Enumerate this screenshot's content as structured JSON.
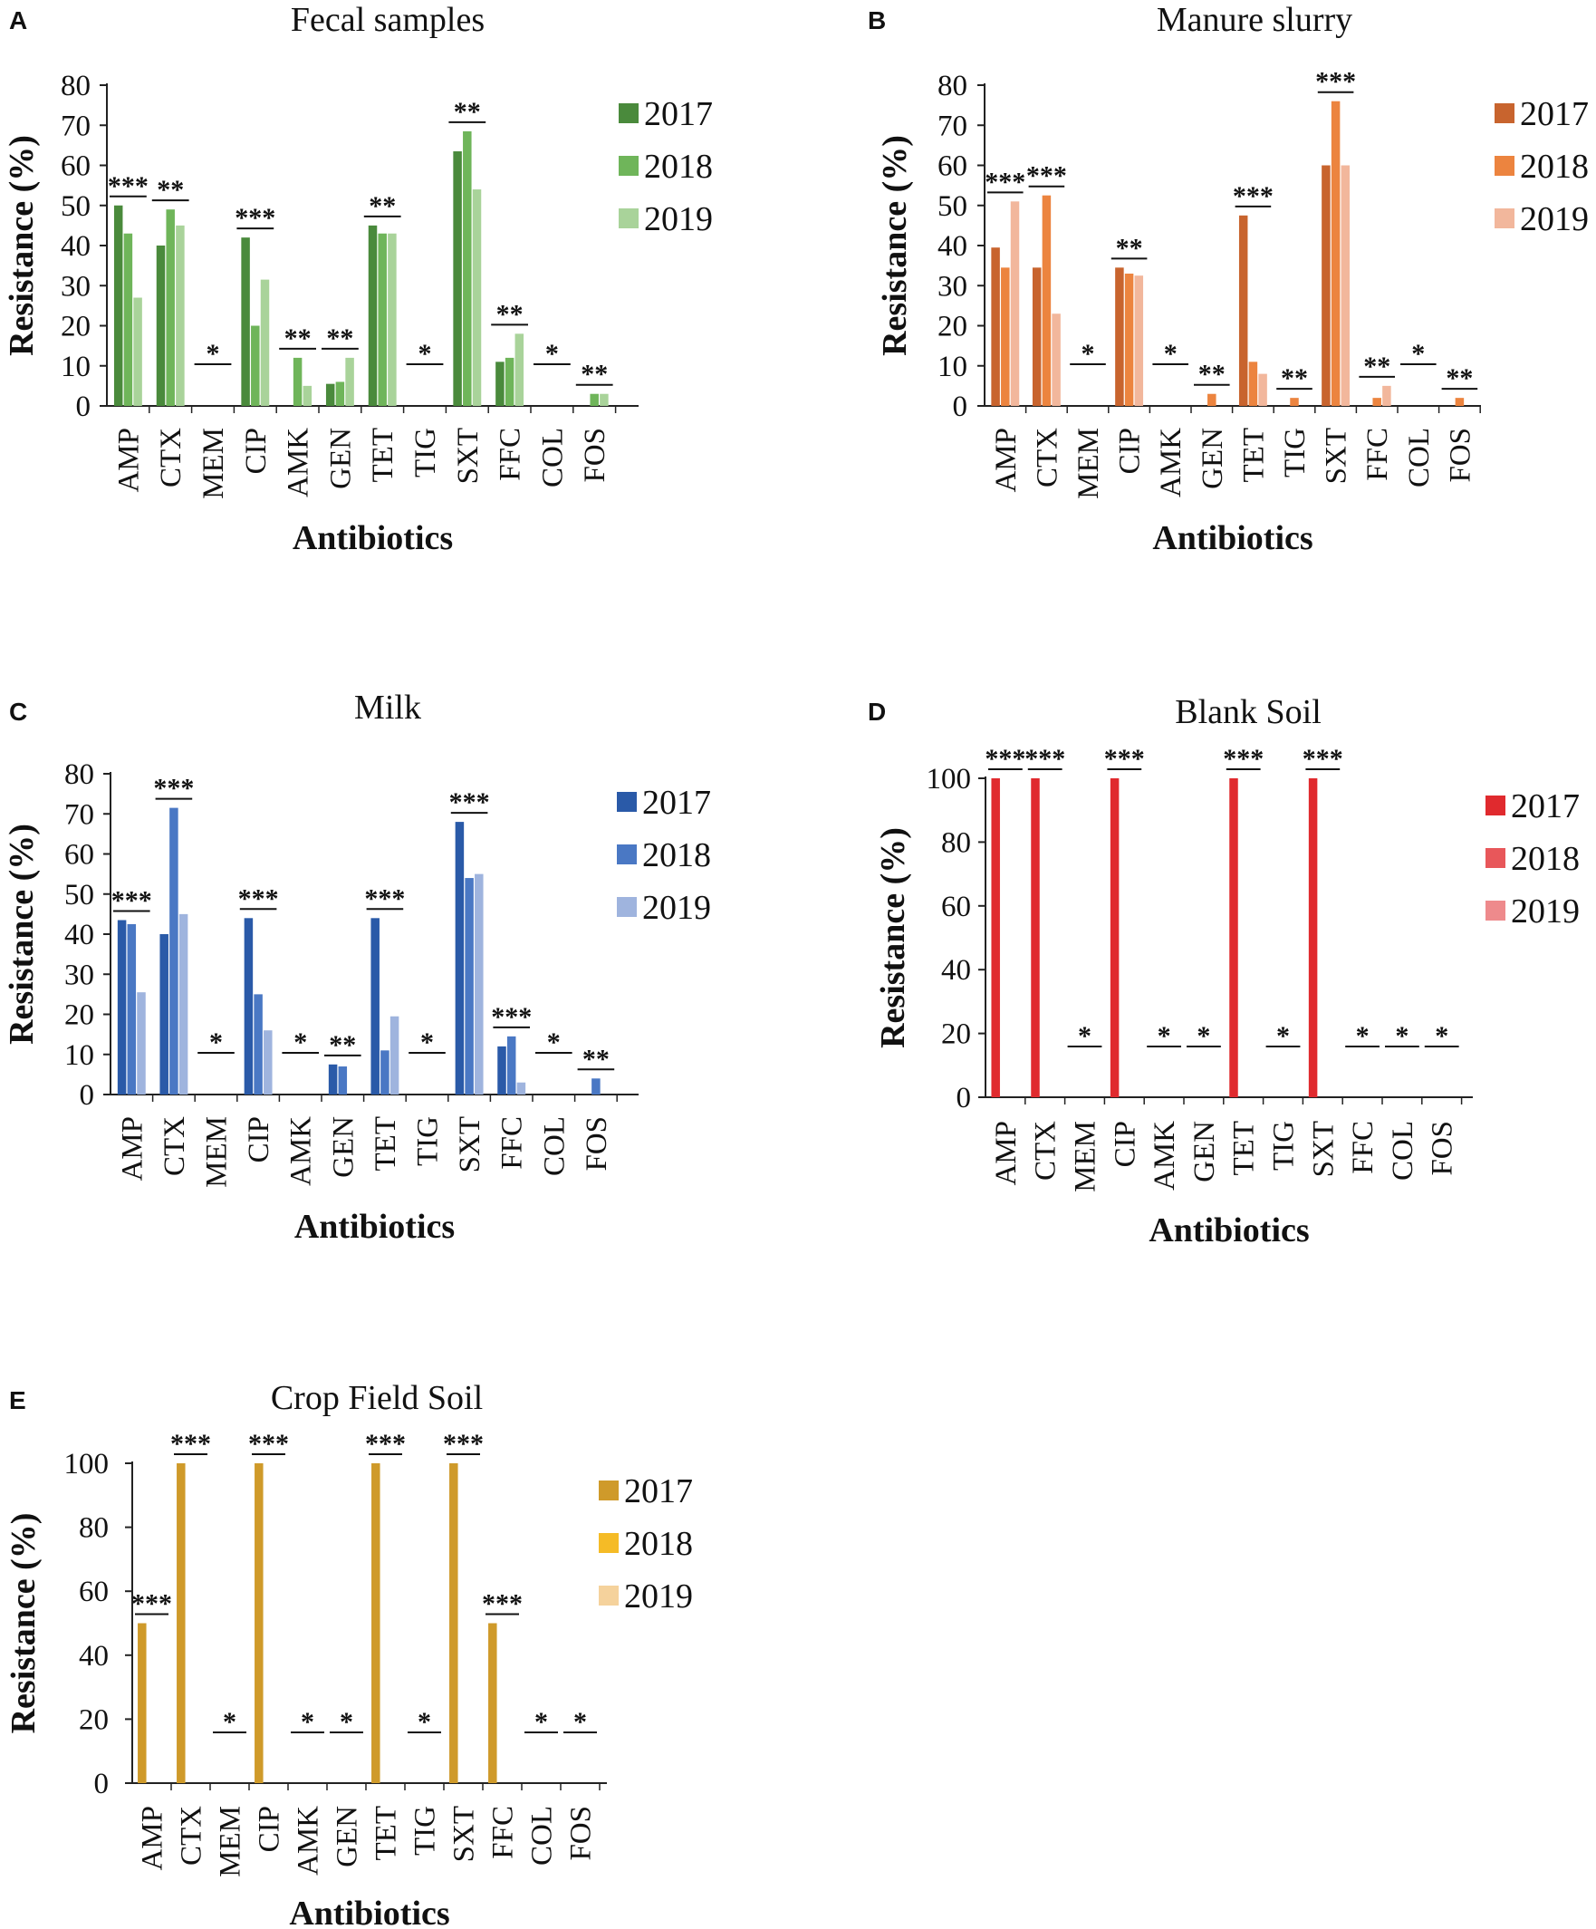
{
  "chart_data": [
    {
      "panel": "A",
      "type": "bar",
      "title": "Fecal samples",
      "xlabel": "Antibiotics",
      "ylabel": "Resistance (%)",
      "ylim": [
        0,
        80
      ],
      "yticks": [
        0,
        10,
        20,
        30,
        40,
        50,
        60,
        70,
        80
      ],
      "categories": [
        "AMP",
        "CTX",
        "MEM",
        "CIP",
        "AMK",
        "GEN",
        "TET",
        "TIG",
        "SXT",
        "FFC",
        "COL",
        "FOS"
      ],
      "series": [
        {
          "name": "2017",
          "color": "#4a8a3c",
          "values": [
            50,
            40,
            0,
            42,
            0,
            5.5,
            45,
            0,
            63.5,
            11,
            0,
            0
          ]
        },
        {
          "name": "2018",
          "color": "#6fb55a",
          "values": [
            43,
            49,
            0,
            20,
            12,
            6,
            43,
            0,
            68.5,
            12,
            0,
            3
          ]
        },
        {
          "name": "2019",
          "color": "#a9d39a",
          "values": [
            27,
            45,
            0,
            31.5,
            5,
            12,
            43,
            0,
            54,
            18,
            0,
            3
          ]
        }
      ],
      "significance": [
        "***",
        "**",
        "*",
        "***",
        "**",
        "**",
        "**",
        "*",
        "**",
        "**",
        "*",
        "**"
      ]
    },
    {
      "panel": "B",
      "type": "bar",
      "title": "Manure slurry",
      "xlabel": "Antibiotics",
      "ylabel": "Resistance (%)",
      "ylim": [
        0,
        80
      ],
      "yticks": [
        0,
        10,
        20,
        30,
        40,
        50,
        60,
        70,
        80
      ],
      "categories": [
        "AMP",
        "CTX",
        "MEM",
        "CIP",
        "AMK",
        "GEN",
        "TET",
        "TIG",
        "SXT",
        "FFC",
        "COL",
        "FOS"
      ],
      "series": [
        {
          "name": "2017",
          "color": "#c8642e",
          "values": [
            39.5,
            34.5,
            0,
            34.5,
            0,
            0,
            47.5,
            0,
            60,
            0,
            0,
            0
          ]
        },
        {
          "name": "2018",
          "color": "#ec843f",
          "values": [
            34.5,
            52.5,
            0,
            33,
            0,
            3,
            11,
            2,
            76,
            2,
            0,
            2
          ]
        },
        {
          "name": "2019",
          "color": "#f2b79c",
          "values": [
            51,
            23,
            0,
            32.5,
            0,
            0,
            8,
            0,
            60,
            5,
            0,
            0
          ]
        }
      ],
      "significance": [
        "***",
        "***",
        "*",
        "**",
        "*",
        "**",
        "***",
        "**",
        "***",
        "**",
        "*",
        "**"
      ]
    },
    {
      "panel": "C",
      "type": "bar",
      "title": "Milk",
      "xlabel": "Antibiotics",
      "ylabel": "Resistance (%)",
      "ylim": [
        0,
        80
      ],
      "yticks": [
        0,
        10,
        20,
        30,
        40,
        50,
        60,
        70,
        80
      ],
      "categories": [
        "AMP",
        "CTX",
        "MEM",
        "CIP",
        "AMK",
        "GEN",
        "TET",
        "TIG",
        "SXT",
        "FFC",
        "COL",
        "FOS"
      ],
      "series": [
        {
          "name": "2017",
          "color": "#2a5aa8",
          "values": [
            43.5,
            40,
            0,
            44,
            0,
            7.5,
            44,
            0,
            68,
            12,
            0,
            0
          ]
        },
        {
          "name": "2018",
          "color": "#4a78c4",
          "values": [
            42.5,
            71.5,
            0,
            25,
            0,
            7,
            11,
            0,
            54,
            14.5,
            0,
            4
          ]
        },
        {
          "name": "2019",
          "color": "#9fb4de",
          "values": [
            25.5,
            45,
            0,
            16,
            0,
            0,
            19.5,
            0,
            55,
            3,
            0,
            0
          ]
        }
      ],
      "significance": [
        "***",
        "***",
        "*",
        "***",
        "*",
        "**",
        "***",
        "*",
        "***",
        "***",
        "*",
        "**"
      ]
    },
    {
      "panel": "D",
      "type": "bar",
      "title": "Blank Soil",
      "xlabel": "Antibiotics",
      "ylabel": "Resistance (%)",
      "ylim": [
        0,
        100
      ],
      "yticks": [
        0,
        20,
        40,
        60,
        80,
        100
      ],
      "categories": [
        "AMP",
        "CTX",
        "MEM",
        "CIP",
        "AMK",
        "GEN",
        "TET",
        "TIG",
        "SXT",
        "FFC",
        "COL",
        "FOS"
      ],
      "series": [
        {
          "name": "2017",
          "color": "#e02a2e",
          "values": [
            100,
            100,
            0,
            100,
            0,
            0,
            100,
            0,
            100,
            0,
            0,
            0
          ]
        },
        {
          "name": "2018",
          "color": "#e8575a",
          "values": [
            0,
            0,
            0,
            0,
            0,
            0,
            0,
            0,
            0,
            0,
            0,
            0
          ]
        },
        {
          "name": "2019",
          "color": "#ee8a8c",
          "values": [
            0,
            0,
            0,
            0,
            0,
            0,
            0,
            0,
            0,
            0,
            0,
            0
          ]
        }
      ],
      "significance": [
        "***",
        "***",
        "*",
        "***",
        "*",
        "*",
        "***",
        "*",
        "***",
        "*",
        "*",
        "*"
      ]
    },
    {
      "panel": "E",
      "type": "bar",
      "title": "Crop Field Soil",
      "xlabel": "Antibiotics",
      "ylabel": "Resistance (%)",
      "ylim": [
        0,
        100
      ],
      "yticks": [
        0,
        20,
        40,
        60,
        80,
        100
      ],
      "categories": [
        "AMP",
        "CTX",
        "MEM",
        "CIP",
        "AMK",
        "GEN",
        "TET",
        "TIG",
        "SXT",
        "FFC",
        "COL",
        "FOS"
      ],
      "series": [
        {
          "name": "2017",
          "color": "#cf9a2a",
          "values": [
            50,
            100,
            0,
            100,
            0,
            0,
            100,
            0,
            100,
            50,
            0,
            0
          ]
        },
        {
          "name": "2018",
          "color": "#f5bb26",
          "values": [
            0,
            0,
            0,
            0,
            0,
            0,
            0,
            0,
            0,
            0,
            0,
            0
          ]
        },
        {
          "name": "2019",
          "color": "#f5d29c",
          "values": [
            0,
            0,
            0,
            0,
            0,
            0,
            0,
            0,
            0,
            0,
            0,
            0
          ]
        }
      ],
      "significance": [
        "***",
        "***",
        "*",
        "***",
        "*",
        "*",
        "***",
        "*",
        "***",
        "***",
        "*",
        "*"
      ]
    }
  ]
}
